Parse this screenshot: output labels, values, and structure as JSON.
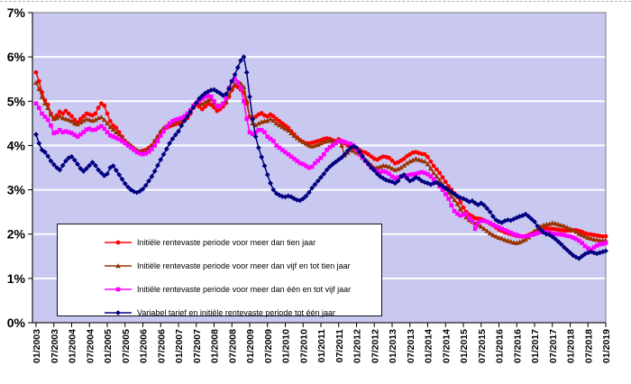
{
  "chart_data": {
    "type": "line",
    "title": "",
    "xlabel": "",
    "ylabel": "",
    "ylim": [
      0,
      7
    ],
    "grid": "horizontal white gridlines at each 1%",
    "legend_position": "inside bottom-left, white box with black border",
    "plot_bg": "#C8C8F0",
    "axis_color": "#000000",
    "border_color": "#8A8A9A",
    "x_unit": "monthly points from 01/2003 to 01/2019, tick every 6 months",
    "y_tick_labels": [
      "0%",
      "1%",
      "2%",
      "3%",
      "4%",
      "5%",
      "6%",
      "7%"
    ],
    "x_tick_labels": [
      "01/2003",
      "07/2003",
      "01/2004",
      "07/2004",
      "01/2005",
      "07/2005",
      "01/2006",
      "07/2006",
      "01/2007",
      "07/2007",
      "01/2008",
      "07/2008",
      "01/2009",
      "07/2009",
      "01/2010",
      "07/2010",
      "01/2011",
      "07/2011",
      "01/2012",
      "07/2012",
      "01/2013",
      "07/2013",
      "01/2014",
      "07/2014",
      "01/2015",
      "07/2015",
      "01/2016",
      "07/2016",
      "01/2017",
      "07/2017",
      "01/2018",
      "07/2018",
      "01/2019"
    ],
    "series": [
      {
        "name": "Initiële rentevaste periode voor meer dan tien jaar",
        "color": "#FF0000",
        "marker": "circle",
        "values": [
          5.65,
          5.45,
          5.2,
          5.02,
          4.92,
          4.72,
          4.62,
          4.68,
          4.76,
          4.72,
          4.78,
          4.72,
          4.66,
          4.58,
          4.52,
          4.6,
          4.66,
          4.72,
          4.7,
          4.68,
          4.72,
          4.85,
          4.95,
          4.9,
          4.72,
          4.55,
          4.45,
          4.4,
          4.3,
          4.2,
          4.1,
          4.04,
          3.98,
          3.92,
          3.88,
          3.86,
          3.88,
          3.9,
          3.95,
          4.0,
          4.1,
          4.2,
          4.3,
          4.36,
          4.4,
          4.43,
          4.46,
          4.48,
          4.5,
          4.52,
          4.56,
          4.62,
          4.72,
          4.85,
          4.92,
          4.88,
          4.82,
          4.88,
          4.94,
          4.92,
          4.86,
          4.78,
          4.82,
          4.88,
          4.96,
          5.1,
          5.25,
          5.35,
          5.32,
          5.26,
          5.2,
          4.95,
          4.65,
          4.6,
          4.65,
          4.7,
          4.73,
          4.68,
          4.66,
          4.7,
          4.66,
          4.6,
          4.55,
          4.5,
          4.45,
          4.4,
          4.32,
          4.25,
          4.18,
          4.12,
          4.08,
          4.05,
          4.05,
          4.06,
          4.08,
          4.1,
          4.12,
          4.15,
          4.16,
          4.15,
          4.12,
          4.1,
          4.14,
          4.1,
          4.05,
          4.0,
          3.96,
          3.95,
          3.94,
          3.9,
          3.86,
          3.84,
          3.8,
          3.75,
          3.7,
          3.68,
          3.72,
          3.75,
          3.74,
          3.72,
          3.66,
          3.6,
          3.62,
          3.66,
          3.7,
          3.76,
          3.8,
          3.84,
          3.85,
          3.83,
          3.81,
          3.8,
          3.74,
          3.64,
          3.54,
          3.46,
          3.38,
          3.28,
          3.18,
          3.08,
          3.0,
          2.92,
          2.84,
          2.72,
          2.6,
          2.5,
          2.44,
          2.4,
          2.36,
          2.35,
          2.34,
          2.31,
          2.28,
          2.24,
          2.2,
          2.15,
          2.1,
          2.07,
          2.04,
          2.02,
          2.0,
          1.98,
          1.96,
          1.95,
          1.95,
          1.96,
          1.98,
          2.01,
          2.05,
          2.09,
          2.12,
          2.13,
          2.13,
          2.12,
          2.12,
          2.11,
          2.1,
          2.09,
          2.08,
          2.08,
          2.08,
          2.09,
          2.09,
          2.07,
          2.05,
          2.02,
          2.0,
          1.99,
          1.98,
          1.97,
          1.96,
          1.95,
          1.95
        ]
      },
      {
        "name": "Initiële rentevaste periode voor meer dan vijf en tot tien jaar",
        "color": "#993300",
        "marker": "triangle",
        "values": [
          5.42,
          5.28,
          5.1,
          4.95,
          4.85,
          4.7,
          4.6,
          4.62,
          4.66,
          4.62,
          4.6,
          4.58,
          4.55,
          4.5,
          4.48,
          4.52,
          4.56,
          4.6,
          4.58,
          4.56,
          4.58,
          4.62,
          4.64,
          4.58,
          4.5,
          4.42,
          4.36,
          4.3,
          4.25,
          4.18,
          4.1,
          4.05,
          4.0,
          3.95,
          3.9,
          3.86,
          3.86,
          3.88,
          3.93,
          4.0,
          4.1,
          4.2,
          4.32,
          4.4,
          4.44,
          4.47,
          4.5,
          4.53,
          4.56,
          4.58,
          4.62,
          4.68,
          4.78,
          4.9,
          4.98,
          4.96,
          4.94,
          4.98,
          5.02,
          5.04,
          4.96,
          4.88,
          4.9,
          4.94,
          5.0,
          5.15,
          5.3,
          5.38,
          5.43,
          5.4,
          5.32,
          5.02,
          4.65,
          4.5,
          4.46,
          4.5,
          4.53,
          4.55,
          4.56,
          4.6,
          4.56,
          4.5,
          4.46,
          4.42,
          4.38,
          4.34,
          4.28,
          4.22,
          4.17,
          4.12,
          4.08,
          4.04,
          4.0,
          3.98,
          4.0,
          4.02,
          4.05,
          4.08,
          4.1,
          4.12,
          4.1,
          4.08,
          4.1,
          4.0,
          3.78,
          3.84,
          3.9,
          3.88,
          3.84,
          3.8,
          3.74,
          3.68,
          3.62,
          3.56,
          3.5,
          3.5,
          3.52,
          3.55,
          3.54,
          3.52,
          3.48,
          3.45,
          3.47,
          3.5,
          3.55,
          3.6,
          3.64,
          3.67,
          3.7,
          3.68,
          3.66,
          3.64,
          3.58,
          3.48,
          3.38,
          3.3,
          3.22,
          3.12,
          3.02,
          2.93,
          2.85,
          2.77,
          2.68,
          2.56,
          2.46,
          2.38,
          2.32,
          2.28,
          2.24,
          2.21,
          2.17,
          2.12,
          2.07,
          2.02,
          1.98,
          1.95,
          1.92,
          1.9,
          1.87,
          1.85,
          1.83,
          1.81,
          1.8,
          1.82,
          1.85,
          1.88,
          1.93,
          1.99,
          2.06,
          2.12,
          2.17,
          2.2,
          2.22,
          2.23,
          2.25,
          2.24,
          2.22,
          2.2,
          2.18,
          2.15,
          2.12,
          2.09,
          2.05,
          2.01,
          1.98,
          1.95,
          1.92,
          1.9,
          1.88,
          1.87,
          1.86,
          1.85,
          1.86
        ]
      },
      {
        "name": "Initiële rentevaste periode voor meer dan één en tot vijf jaar",
        "color": "#FF00FF",
        "marker": "square",
        "values": [
          4.95,
          4.85,
          4.72,
          4.65,
          4.58,
          4.45,
          4.28,
          4.3,
          4.35,
          4.3,
          4.32,
          4.3,
          4.28,
          4.24,
          4.2,
          4.25,
          4.3,
          4.36,
          4.38,
          4.35,
          4.36,
          4.4,
          4.44,
          4.38,
          4.3,
          4.23,
          4.2,
          4.17,
          4.14,
          4.1,
          4.05,
          4.0,
          3.95,
          3.9,
          3.85,
          3.82,
          3.8,
          3.82,
          3.86,
          3.92,
          4.0,
          4.1,
          4.22,
          4.32,
          4.42,
          4.5,
          4.55,
          4.58,
          4.6,
          4.62,
          4.66,
          4.72,
          4.8,
          4.9,
          4.95,
          5.0,
          5.05,
          5.1,
          5.12,
          5.1,
          5.0,
          4.9,
          4.88,
          4.95,
          5.06,
          5.3,
          5.45,
          5.5,
          5.42,
          5.3,
          5.0,
          4.6,
          4.3,
          4.26,
          4.3,
          4.35,
          4.35,
          4.3,
          4.2,
          4.15,
          4.1,
          4.0,
          3.95,
          3.9,
          3.85,
          3.8,
          3.75,
          3.7,
          3.65,
          3.6,
          3.58,
          3.54,
          3.5,
          3.52,
          3.6,
          3.66,
          3.72,
          3.8,
          3.9,
          3.96,
          4.0,
          4.05,
          4.1,
          4.1,
          4.08,
          4.05,
          4.04,
          4.0,
          3.9,
          3.8,
          3.72,
          3.65,
          3.58,
          3.5,
          3.45,
          3.42,
          3.4,
          3.42,
          3.4,
          3.36,
          3.3,
          3.26,
          3.28,
          3.3,
          3.31,
          3.32,
          3.34,
          3.35,
          3.36,
          3.38,
          3.4,
          3.38,
          3.35,
          3.3,
          3.24,
          3.16,
          3.08,
          3.0,
          2.9,
          2.8,
          2.65,
          2.52,
          2.46,
          2.42,
          2.44,
          2.45,
          2.36,
          2.3,
          2.12,
          2.25,
          2.3,
          2.3,
          2.28,
          2.25,
          2.21,
          2.18,
          2.15,
          2.12,
          2.09,
          2.06,
          2.03,
          2.0,
          1.98,
          1.96,
          1.95,
          1.95,
          1.96,
          1.98,
          2.0,
          2.02,
          2.04,
          2.05,
          2.05,
          2.03,
          2.01,
          2.0,
          2.0,
          1.99,
          1.98,
          1.96,
          1.95,
          1.92,
          1.89,
          1.85,
          1.8,
          1.73,
          1.68,
          1.65,
          1.7,
          1.74,
          1.77,
          1.78,
          1.8
        ]
      },
      {
        "name": "Variabel tarief en initiële rentevaste periode tot één jaar",
        "color": "#000080",
        "marker": "diamond",
        "values": [
          4.25,
          4.05,
          3.9,
          3.85,
          3.76,
          3.65,
          3.57,
          3.5,
          3.45,
          3.55,
          3.65,
          3.72,
          3.75,
          3.67,
          3.58,
          3.48,
          3.42,
          3.48,
          3.55,
          3.62,
          3.55,
          3.45,
          3.38,
          3.32,
          3.36,
          3.5,
          3.54,
          3.44,
          3.34,
          3.24,
          3.14,
          3.06,
          3.0,
          2.96,
          2.94,
          2.97,
          3.02,
          3.1,
          3.2,
          3.3,
          3.42,
          3.55,
          3.68,
          3.8,
          3.92,
          4.05,
          4.15,
          4.24,
          4.32,
          4.45,
          4.56,
          4.66,
          4.76,
          4.86,
          4.96,
          5.06,
          5.12,
          5.18,
          5.22,
          5.25,
          5.26,
          5.22,
          5.18,
          5.13,
          5.16,
          5.28,
          5.45,
          5.6,
          5.76,
          5.92,
          6.0,
          5.65,
          5.1,
          4.6,
          4.2,
          3.95,
          3.74,
          3.54,
          3.34,
          3.15,
          3.0,
          2.92,
          2.88,
          2.85,
          2.84,
          2.86,
          2.84,
          2.8,
          2.77,
          2.76,
          2.8,
          2.86,
          2.94,
          3.04,
          3.12,
          3.2,
          3.28,
          3.36,
          3.45,
          3.52,
          3.58,
          3.63,
          3.68,
          3.73,
          3.8,
          3.88,
          3.95,
          3.98,
          3.95,
          3.86,
          3.76,
          3.66,
          3.58,
          3.5,
          3.44,
          3.36,
          3.3,
          3.26,
          3.22,
          3.2,
          3.18,
          3.15,
          3.2,
          3.3,
          3.34,
          3.26,
          3.2,
          3.23,
          3.28,
          3.25,
          3.2,
          3.17,
          3.15,
          3.12,
          3.15,
          3.17,
          3.12,
          3.08,
          3.04,
          3.0,
          2.95,
          2.9,
          2.86,
          2.82,
          2.8,
          2.77,
          2.73,
          2.75,
          2.7,
          2.66,
          2.7,
          2.65,
          2.58,
          2.5,
          2.4,
          2.32,
          2.28,
          2.26,
          2.3,
          2.32,
          2.31,
          2.34,
          2.37,
          2.4,
          2.42,
          2.45,
          2.4,
          2.34,
          2.28,
          2.18,
          2.1,
          2.04,
          2.0,
          1.99,
          1.94,
          1.89,
          1.83,
          1.77,
          1.7,
          1.64,
          1.58,
          1.52,
          1.48,
          1.45,
          1.5,
          1.55,
          1.58,
          1.6,
          1.58,
          1.56,
          1.58,
          1.6,
          1.62
        ]
      }
    ]
  }
}
